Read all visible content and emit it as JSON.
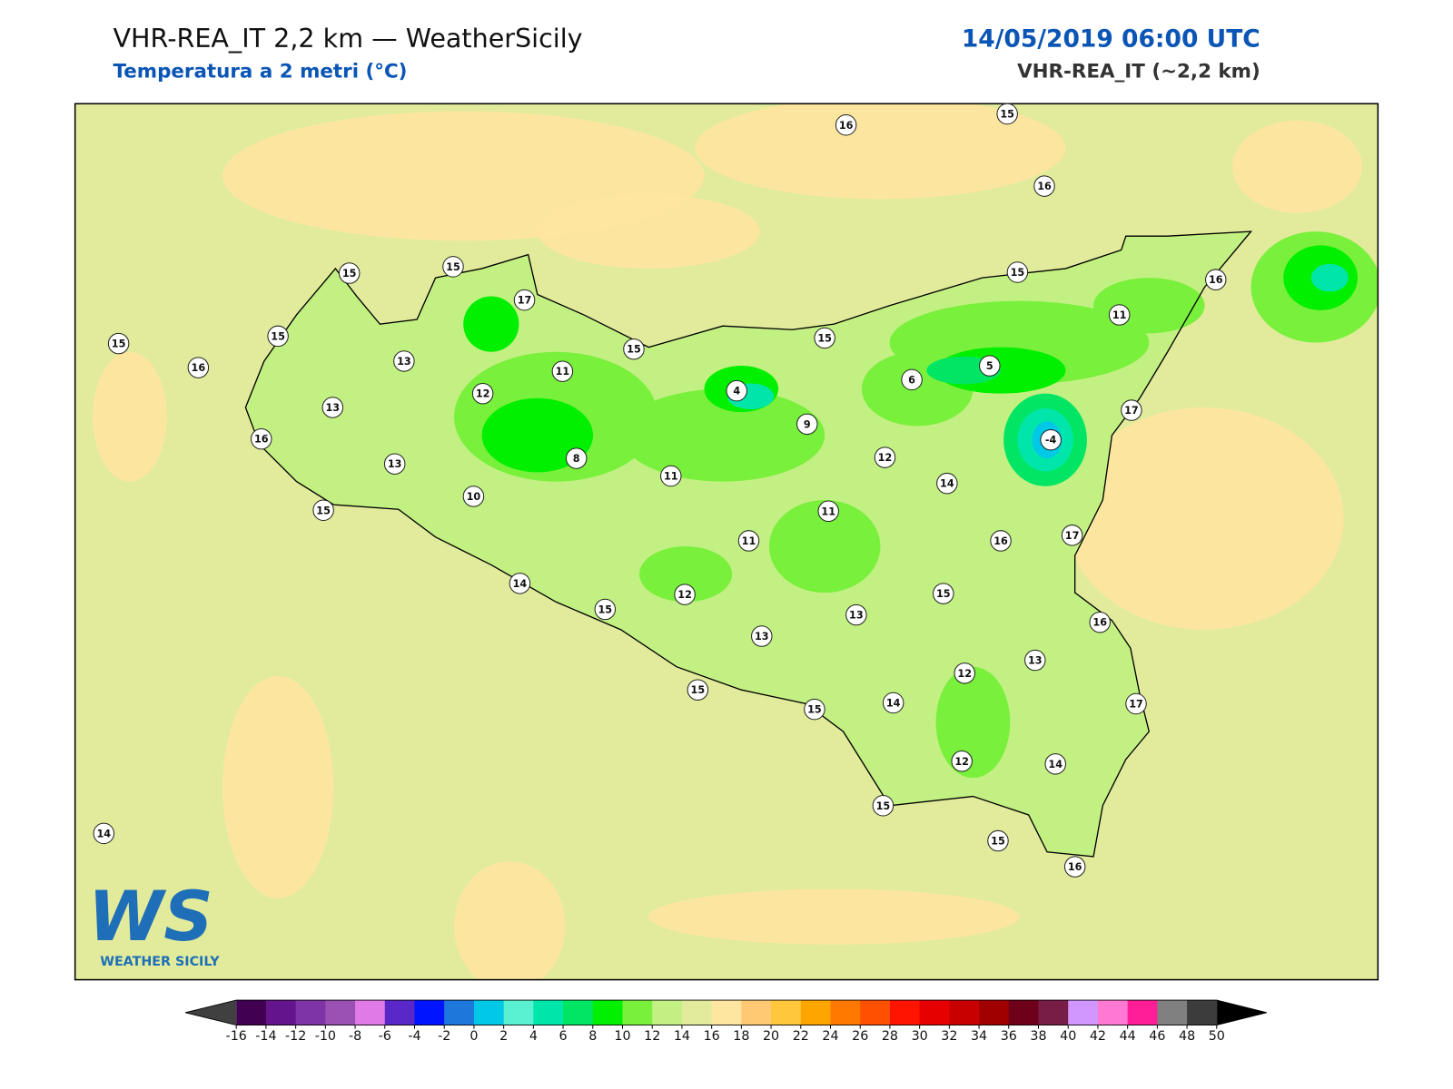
{
  "header": {
    "title": "VHR-REA_IT 2,2 km — WeatherSicily",
    "subtitle": "Temperatura a 2 metri (°C)",
    "datetime": "14/05/2019 06:00 UTC",
    "model": "VHR-REA_IT (~2,2 km)"
  },
  "stations": [
    16,
    15,
    16,
    15,
    15,
    17,
    15,
    16,
    11,
    15,
    15,
    16,
    13,
    15,
    15,
    11,
    12,
    4,
    6,
    5,
    13,
    9,
    17,
    -4,
    16,
    13,
    8,
    12,
    11,
    10,
    14,
    15,
    11,
    11,
    16,
    17,
    14,
    15,
    12,
    15,
    13,
    13,
    16,
    12,
    13,
    15,
    15,
    14,
    17,
    12,
    14,
    15,
    15,
    16,
    14
  ],
  "colorbar": {
    "ticks": [
      -16,
      -14,
      -12,
      -10,
      -8,
      -6,
      -4,
      -2,
      0,
      2,
      4,
      6,
      8,
      10,
      12,
      14,
      16,
      18,
      20,
      22,
      24,
      26,
      28,
      30,
      32,
      34,
      36,
      38,
      40,
      42,
      44,
      46,
      48,
      50
    ],
    "colors": [
      "#420052",
      "#64148c",
      "#7e34a6",
      "#9b50b4",
      "#e07ae6",
      "#5a28c8",
      "#0014ff",
      "#1e78dc",
      "#00c8e6",
      "#5af0d2",
      "#00e6aa",
      "#00e664",
      "#00f000",
      "#78f03c",
      "#c3f082",
      "#e1eb9b",
      "#ffe6a0",
      "#ffc873",
      "#ffc83c",
      "#ffa500",
      "#ff7800",
      "#ff5000",
      "#ff1400",
      "#e60000",
      "#c80000",
      "#a00000",
      "#6e0019",
      "#781e46",
      "#d296ff",
      "#ff78d2",
      "#ff1e96",
      "#808080",
      "#3c3c3c"
    ],
    "under": "#404040",
    "over": "#000000"
  },
  "logo": {
    "text": "WS",
    "caption": "WEATHER SICILY"
  }
}
